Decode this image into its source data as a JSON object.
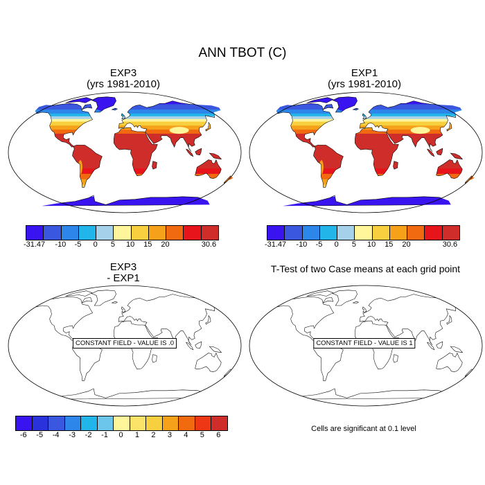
{
  "title": "ANN TBOT (C)",
  "panels": [
    {
      "title1": "EXP3",
      "title2": "(yrs 1981-2010)"
    },
    {
      "title1": "EXP1",
      "title2": "(yrs 1981-2010)"
    },
    {
      "title1": "EXP3",
      "title2": "- EXP1",
      "note": "CONSTANT FIELD - VALUE IS .0"
    },
    {
      "title1": "T-Test of two Case means at each grid point",
      "note": "CONSTANT FIELD - VALUE IS 1"
    }
  ],
  "colorbar_abs": {
    "colors": [
      "#3a14f0",
      "#3a57e0",
      "#2d86ea",
      "#22b5e9",
      "#a5d2ea",
      "#fff59a",
      "#f8cf3f",
      "#f5a11a",
      "#f26a10",
      "#e8141c",
      "#cf2d2a"
    ],
    "labels": [
      "-31.47",
      "-10",
      "-5",
      "0",
      "5",
      "10",
      "15",
      "20",
      "30.6"
    ]
  },
  "colorbar_diff": {
    "colors": [
      "#3a14f0",
      "#2a32dc",
      "#3a57e0",
      "#2d86ea",
      "#22b5e9",
      "#6cc5ea",
      "#fff59a",
      "#fbe36a",
      "#f8cf3f",
      "#f5a11a",
      "#f26a10",
      "#ee3714",
      "#cf2d2a"
    ],
    "labels": [
      "-6",
      "-5",
      "-4",
      "-3",
      "-2",
      "-1",
      "0",
      "1",
      "2",
      "3",
      "4",
      "5",
      "6"
    ]
  },
  "significance_note": "Cells are significant at 0.1 level"
}
